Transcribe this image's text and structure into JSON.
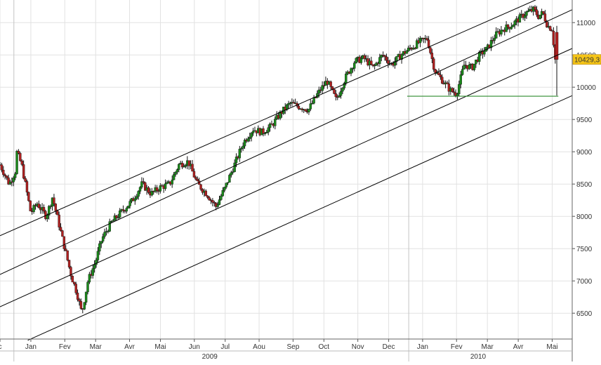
{
  "chart_data": {
    "type": "candlestick",
    "y_ticks": [
      6500,
      7000,
      7500,
      8000,
      8500,
      9000,
      9500,
      10000,
      10500,
      11000
    ],
    "y_tick_labels": [
      "6500",
      "7000",
      "7500",
      "8000",
      "8500",
      "9000",
      "9500",
      "10000",
      "10500",
      "11000"
    ],
    "ylim": [
      6100,
      11350
    ],
    "month_labels": [
      {
        "label": "c",
        "t": 0.0
      },
      {
        "label": "Jan",
        "t": 1.0
      },
      {
        "label": "Fev",
        "t": 2.1
      },
      {
        "label": "Mar",
        "t": 3.1
      },
      {
        "label": "Avr",
        "t": 4.2
      },
      {
        "label": "Mai",
        "t": 5.2
      },
      {
        "label": "Jun",
        "t": 6.3
      },
      {
        "label": "Jul",
        "t": 7.3
      },
      {
        "label": "Aou",
        "t": 8.4
      },
      {
        "label": "Sep",
        "t": 9.5
      },
      {
        "label": "Oct",
        "t": 10.5
      },
      {
        "label": "Nov",
        "t": 11.6
      },
      {
        "label": "Dec",
        "t": 12.6
      },
      {
        "label": "Jan",
        "t": 13.7
      },
      {
        "label": "Fev",
        "t": 14.8
      },
      {
        "label": "Mar",
        "t": 15.8
      },
      {
        "label": "Avr",
        "t": 16.8
      },
      {
        "label": "Mai",
        "t": 17.9
      }
    ],
    "year_labels": [
      {
        "label": "2009",
        "t": 6.8
      },
      {
        "label": "2010",
        "t": 15.5
      }
    ],
    "year_dividers": [
      0.45,
      13.25
    ],
    "xlim": [
      0,
      18.55
    ],
    "price_path": [
      [
        0,
        8800
      ],
      [
        0.3,
        8500
      ],
      [
        0.5,
        8700
      ],
      [
        0.5,
        9050
      ],
      [
        0.7,
        8800
      ],
      [
        0.9,
        8300
      ],
      [
        1.0,
        8050
      ],
      [
        1.2,
        8200
      ],
      [
        1.5,
        8000
      ],
      [
        1.7,
        8300
      ],
      [
        1.9,
        7900
      ],
      [
        2.1,
        7500
      ],
      [
        2.3,
        7100
      ],
      [
        2.5,
        6800
      ],
      [
        2.65,
        6500
      ],
      [
        2.85,
        7000
      ],
      [
        3.1,
        7300
      ],
      [
        3.3,
        7650
      ],
      [
        3.6,
        7900
      ],
      [
        4.0,
        8100
      ],
      [
        4.3,
        8250
      ],
      [
        4.6,
        8500
      ],
      [
        4.9,
        8350
      ],
      [
        5.2,
        8450
      ],
      [
        5.5,
        8500
      ],
      [
        5.8,
        8800
      ],
      [
        6.1,
        8850
      ],
      [
        6.4,
        8500
      ],
      [
        6.7,
        8350
      ],
      [
        7.0,
        8150
      ],
      [
        7.3,
        8450
      ],
      [
        7.6,
        8800
      ],
      [
        7.9,
        9150
      ],
      [
        8.2,
        9350
      ],
      [
        8.5,
        9300
      ],
      [
        8.8,
        9400
      ],
      [
        9.1,
        9600
      ],
      [
        9.4,
        9750
      ],
      [
        9.7,
        9700
      ],
      [
        10.0,
        9650
      ],
      [
        10.3,
        9900
      ],
      [
        10.6,
        10100
      ],
      [
        10.9,
        9800
      ],
      [
        11.2,
        10150
      ],
      [
        11.5,
        10400
      ],
      [
        11.8,
        10450
      ],
      [
        12.1,
        10300
      ],
      [
        12.4,
        10500
      ],
      [
        12.7,
        10350
      ],
      [
        13.0,
        10500
      ],
      [
        13.3,
        10600
      ],
      [
        13.6,
        10700
      ],
      [
        13.85,
        10750
      ],
      [
        14.1,
        10250
      ],
      [
        14.35,
        10100
      ],
      [
        14.6,
        9950
      ],
      [
        14.8,
        9900
      ],
      [
        15.05,
        10350
      ],
      [
        15.3,
        10300
      ],
      [
        15.55,
        10500
      ],
      [
        15.8,
        10600
      ],
      [
        16.05,
        10800
      ],
      [
        16.3,
        10900
      ],
      [
        16.55,
        10950
      ],
      [
        16.8,
        11050
      ],
      [
        17.05,
        11150
      ],
      [
        17.3,
        11200
      ],
      [
        17.45,
        11100
      ],
      [
        17.6,
        11150
      ],
      [
        17.75,
        10950
      ],
      [
        17.9,
        10900
      ],
      [
        18.0,
        10429
      ]
    ],
    "last_candle": {
      "t": 18.05,
      "open": 10850,
      "high": 10950,
      "low": 9870,
      "close": 10429
    },
    "channel_lines": [
      {
        "t1": 0,
        "v1": 7700,
        "t2": 18.55,
        "v2": 11600
      },
      {
        "t1": 0,
        "v1": 7100,
        "t2": 18.55,
        "v2": 11200
      },
      {
        "t1": 0,
        "v1": 6600,
        "t2": 18.55,
        "v2": 10600
      },
      {
        "t1": 0.9,
        "v1": 6080,
        "t2": 18.55,
        "v2": 9870
      }
    ],
    "support_line": {
      "t1": 13.2,
      "t2": 18.1,
      "value": 9860
    },
    "current_value": 10429.3,
    "current_value_label": "10429,3",
    "colors": {
      "up": "#1a8a1a",
      "down": "#b02020",
      "wick": "#111111",
      "channel": "#000000",
      "support": "#2e8b2e",
      "grid": "#e2e2e2",
      "badge": "#f5c518"
    }
  }
}
